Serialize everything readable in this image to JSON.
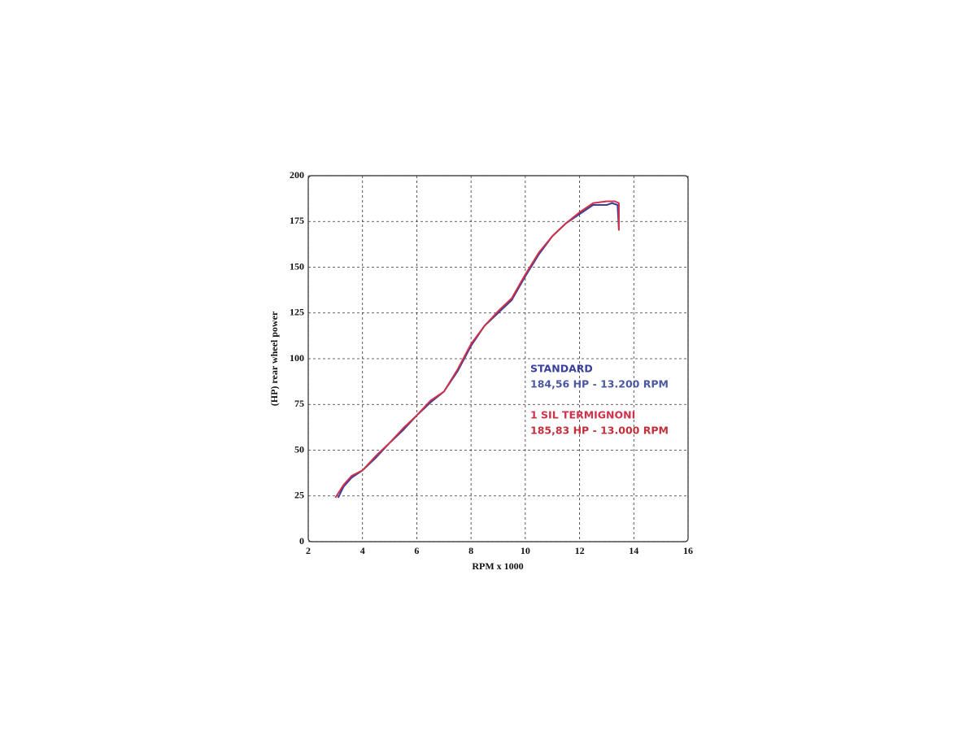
{
  "chart_data": {
    "type": "line",
    "xlabel": "RPM x 1000",
    "ylabel": "(HP) rear wheel power",
    "xlim": [
      2,
      16
    ],
    "xticks": [
      2,
      4,
      6,
      8,
      10,
      12,
      14,
      16
    ],
    "ylim": [
      0,
      200
    ],
    "yticks": [
      0,
      25,
      50,
      75,
      100,
      125,
      150,
      175,
      200
    ],
    "grid": true,
    "series": [
      {
        "name": "STANDARD",
        "color": "#3a3f9a",
        "x": [
          3.1,
          3.3,
          3.6,
          4.0,
          4.5,
          5.0,
          5.5,
          6.0,
          6.5,
          7.0,
          7.5,
          8.0,
          8.5,
          9.0,
          9.5,
          10.0,
          10.5,
          11.0,
          11.5,
          12.0,
          12.5,
          13.0,
          13.2,
          13.4,
          13.45
        ],
        "values": [
          24,
          30,
          35,
          39,
          46,
          54,
          61,
          69,
          76,
          82,
          93,
          107,
          118,
          125,
          132,
          145,
          157,
          167,
          174,
          179,
          184,
          184,
          185,
          184,
          170
        ]
      },
      {
        "name": "1 SIL TERMIGNONI",
        "color": "#d0304a",
        "x": [
          3.0,
          3.3,
          3.6,
          4.0,
          4.5,
          5.0,
          5.5,
          6.0,
          6.5,
          7.0,
          7.5,
          8.0,
          8.5,
          9.0,
          9.5,
          10.0,
          10.5,
          11.0,
          11.5,
          12.0,
          12.5,
          13.0,
          13.3,
          13.45,
          13.45
        ],
        "values": [
          24,
          31,
          36,
          39,
          47,
          54,
          62,
          69,
          77,
          82,
          94,
          108,
          118,
          126,
          133,
          146,
          158,
          167,
          174,
          180,
          185,
          186,
          186,
          185,
          170
        ]
      }
    ],
    "annotations": [
      {
        "text": "184,56 HP - 13.200 RPM",
        "color": "#4a58a0"
      },
      {
        "text": "185,83 HP - 13.000 RPM",
        "color": "#c0303a"
      }
    ]
  }
}
